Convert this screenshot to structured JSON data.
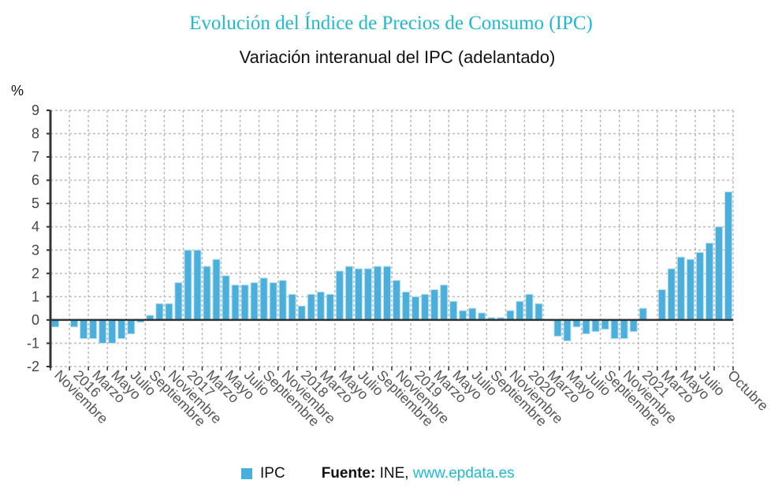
{
  "title": "Evolución del Índice de Precios de Consumo (IPC)",
  "subtitle": "Variación interanual del IPC (adelantado)",
  "source": {
    "label": "Fuente:",
    "name": "INE,",
    "url": "www.epdata.es"
  },
  "chart_data": {
    "type": "bar",
    "ylabel": "%",
    "ylim": [
      -2,
      9
    ],
    "yticks": [
      -2,
      -1,
      0,
      1,
      2,
      3,
      4,
      5,
      6,
      7,
      8,
      9
    ],
    "grid": true,
    "legend_position": "bottom",
    "color": "#4ab0db",
    "xtick_labels": [
      "Noviembre",
      "2016",
      "Marzo",
      "Mayo",
      "Julio",
      "Septiembre",
      "Noviembre",
      "2017",
      "Marzo",
      "Mayo",
      "Julio",
      "Septiembre",
      "Noviembre",
      "2018",
      "Marzo",
      "Mayo",
      "Julio",
      "Septiembre",
      "Noviembre",
      "2019",
      "Marzo",
      "Mayo",
      "Julio",
      "Septiembre",
      "Noviembre",
      "2020",
      "Marzo",
      "Mayo",
      "Julio",
      "Septiembre",
      "Noviembre",
      "2021",
      "Marzo",
      "Mayo",
      "Julio",
      "Octubre"
    ],
    "categories": [
      "2015-11",
      "2015-12",
      "2016-01",
      "2016-02",
      "2016-03",
      "2016-04",
      "2016-05",
      "2016-06",
      "2016-07",
      "2016-08",
      "2016-09",
      "2016-10",
      "2016-11",
      "2016-12",
      "2017-01",
      "2017-02",
      "2017-03",
      "2017-04",
      "2017-05",
      "2017-06",
      "2017-07",
      "2017-08",
      "2017-09",
      "2017-10",
      "2017-11",
      "2017-12",
      "2018-01",
      "2018-02",
      "2018-03",
      "2018-04",
      "2018-05",
      "2018-06",
      "2018-07",
      "2018-08",
      "2018-09",
      "2018-10",
      "2018-11",
      "2018-12",
      "2019-01",
      "2019-02",
      "2019-03",
      "2019-04",
      "2019-05",
      "2019-06",
      "2019-07",
      "2019-08",
      "2019-09",
      "2019-10",
      "2019-11",
      "2019-12",
      "2020-01",
      "2020-02",
      "2020-03",
      "2020-04",
      "2020-05",
      "2020-06",
      "2020-07",
      "2020-08",
      "2020-09",
      "2020-10",
      "2020-11",
      "2020-12",
      "2021-01",
      "2021-02",
      "2021-03",
      "2021-04",
      "2021-05",
      "2021-06",
      "2021-07",
      "2021-08",
      "2021-09",
      "2021-10"
    ],
    "series": [
      {
        "name": "IPC",
        "values": [
          -0.3,
          0.0,
          -0.3,
          -0.8,
          -0.8,
          -1.0,
          -1.0,
          -0.8,
          -0.6,
          -0.1,
          0.2,
          0.7,
          0.7,
          1.6,
          3.0,
          3.0,
          2.3,
          2.6,
          1.9,
          1.5,
          1.5,
          1.6,
          1.8,
          1.6,
          1.7,
          1.1,
          0.6,
          1.1,
          1.2,
          1.1,
          2.1,
          2.3,
          2.2,
          2.2,
          2.3,
          2.3,
          1.7,
          1.2,
          1.0,
          1.1,
          1.3,
          1.5,
          0.8,
          0.4,
          0.5,
          0.3,
          0.1,
          0.1,
          0.4,
          0.8,
          1.1,
          0.7,
          0.0,
          -0.7,
          -0.9,
          -0.3,
          -0.6,
          -0.5,
          -0.4,
          -0.8,
          -0.8,
          -0.5,
          0.5,
          0.0,
          1.3,
          2.2,
          2.7,
          2.6,
          2.9,
          3.3,
          4.0,
          5.5
        ]
      }
    ]
  }
}
